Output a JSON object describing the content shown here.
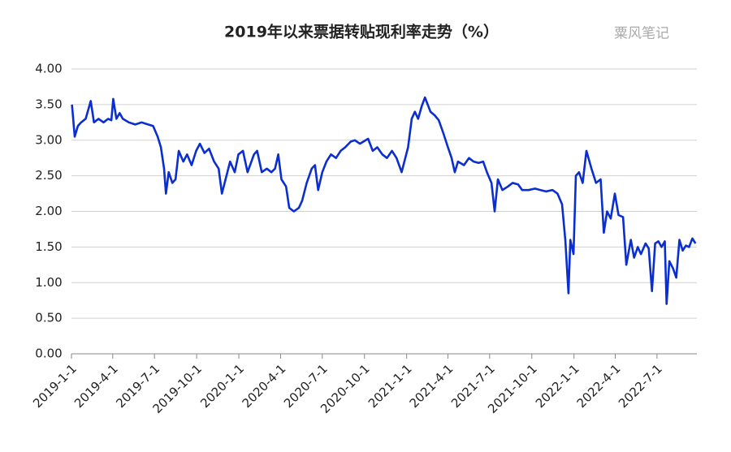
{
  "chart_data": {
    "type": "line",
    "title": "2019年以来票据转贴现利率走势（%）",
    "annotations": [
      "粟风笔记"
    ],
    "x": [
      "2019-1-2",
      "2019-1-8",
      "2019-1-15",
      "2019-1-22",
      "2019-2-1",
      "2019-2-12",
      "2019-2-19",
      "2019-3-1",
      "2019-3-12",
      "2019-3-22",
      "2019-3-29",
      "2019-4-2",
      "2019-4-9",
      "2019-4-16",
      "2019-4-23",
      "2019-5-6",
      "2019-5-20",
      "2019-6-3",
      "2019-6-17",
      "2019-6-28",
      "2019-7-8",
      "2019-7-15",
      "2019-7-22",
      "2019-7-26",
      "2019-8-1",
      "2019-8-9",
      "2019-8-16",
      "2019-8-23",
      "2019-9-2",
      "2019-9-10",
      "2019-9-20",
      "2019-9-30",
      "2019-10-8",
      "2019-10-18",
      "2019-10-28",
      "2019-11-8",
      "2019-11-18",
      "2019-11-25",
      "2019-12-3",
      "2019-12-13",
      "2019-12-23",
      "2019-12-31",
      "2020-1-10",
      "2020-1-20",
      "2020-2-3",
      "2020-2-10",
      "2020-2-20",
      "2020-3-2",
      "2020-3-12",
      "2020-3-20",
      "2020-3-27",
      "2020-4-3",
      "2020-4-13",
      "2020-4-20",
      "2020-4-30",
      "2020-5-11",
      "2020-5-18",
      "2020-5-28",
      "2020-6-8",
      "2020-6-15",
      "2020-6-22",
      "2020-7-1",
      "2020-7-10",
      "2020-7-20",
      "2020-7-31",
      "2020-8-10",
      "2020-8-20",
      "2020-9-1",
      "2020-9-10",
      "2020-9-21",
      "2020-10-9",
      "2020-10-19",
      "2020-10-29",
      "2020-11-9",
      "2020-11-19",
      "2020-11-30",
      "2020-12-10",
      "2020-12-21",
      "2021-1-4",
      "2021-1-12",
      "2021-1-19",
      "2021-1-26",
      "2021-2-3",
      "2021-2-10",
      "2021-2-22",
      "2021-3-3",
      "2021-3-12",
      "2021-3-22",
      "2021-4-1",
      "2021-4-9",
      "2021-4-16",
      "2021-4-23",
      "2021-5-6",
      "2021-5-17",
      "2021-5-27",
      "2021-6-7",
      "2021-6-17",
      "2021-6-25",
      "2021-7-5",
      "2021-7-12",
      "2021-7-19",
      "2021-7-29",
      "2021-8-10",
      "2021-8-20",
      "2021-9-1",
      "2021-9-10",
      "2021-9-24",
      "2021-10-8",
      "2021-10-20",
      "2021-11-1",
      "2021-11-15",
      "2021-11-26",
      "2021-12-6",
      "2021-12-13",
      "2021-12-20",
      "2021-12-24",
      "2021-12-31",
      "2022-1-5",
      "2022-1-12",
      "2022-1-20",
      "2022-1-28",
      "2022-2-8",
      "2022-2-18",
      "2022-2-28",
      "2022-3-7",
      "2022-3-14",
      "2022-3-22",
      "2022-3-31",
      "2022-4-8",
      "2022-4-18",
      "2022-4-25",
      "2022-5-5",
      "2022-5-12",
      "2022-5-20",
      "2022-5-27",
      "2022-6-6",
      "2022-6-13",
      "2022-6-20",
      "2022-6-27",
      "2022-7-4",
      "2022-7-11",
      "2022-7-18",
      "2022-7-22",
      "2022-7-28",
      "2022-8-5",
      "2022-8-12",
      "2022-8-19",
      "2022-8-26",
      "2022-9-2",
      "2022-9-9",
      "2022-9-16",
      "2022-9-23"
    ],
    "series": [
      {
        "name": "票据转贴现利率",
        "color": "#0a2ecf",
        "values": [
          3.5,
          3.05,
          3.2,
          3.25,
          3.3,
          3.55,
          3.25,
          3.3,
          3.25,
          3.3,
          3.28,
          3.58,
          3.3,
          3.38,
          3.3,
          3.25,
          3.22,
          3.25,
          3.22,
          3.2,
          3.05,
          2.9,
          2.6,
          2.25,
          2.55,
          2.4,
          2.45,
          2.85,
          2.7,
          2.8,
          2.65,
          2.85,
          2.95,
          2.82,
          2.88,
          2.7,
          2.6,
          2.25,
          2.45,
          2.7,
          2.55,
          2.8,
          2.85,
          2.55,
          2.8,
          2.85,
          2.55,
          2.6,
          2.55,
          2.6,
          2.8,
          2.45,
          2.35,
          2.05,
          2.0,
          2.05,
          2.15,
          2.4,
          2.6,
          2.65,
          2.3,
          2.55,
          2.7,
          2.8,
          2.75,
          2.85,
          2.9,
          2.98,
          3.0,
          2.95,
          3.02,
          2.85,
          2.9,
          2.8,
          2.75,
          2.85,
          2.75,
          2.55,
          2.9,
          3.3,
          3.4,
          3.3,
          3.48,
          3.6,
          3.4,
          3.35,
          3.28,
          3.1,
          2.9,
          2.75,
          2.55,
          2.7,
          2.65,
          2.75,
          2.7,
          2.68,
          2.7,
          2.55,
          2.4,
          2.0,
          2.45,
          2.3,
          2.35,
          2.4,
          2.38,
          2.3,
          2.3,
          2.32,
          2.3,
          2.28,
          2.3,
          2.25,
          2.1,
          1.6,
          0.85,
          1.6,
          1.4,
          2.5,
          2.55,
          2.4,
          2.85,
          2.6,
          2.4,
          2.45,
          1.7,
          2.0,
          1.9,
          2.25,
          1.95,
          1.92,
          1.25,
          1.6,
          1.35,
          1.5,
          1.4,
          1.55,
          1.48,
          0.88,
          1.55,
          1.58,
          1.5,
          1.58,
          0.7,
          1.3,
          1.2,
          1.07,
          1.6,
          1.45,
          1.52,
          1.5,
          1.62,
          1.55
        ]
      }
    ],
    "xlim": [
      "2019-1-1",
      "2022-9-26"
    ],
    "xticks": [
      "2019-1-1",
      "2019-4-1",
      "2019-7-1",
      "2019-10-1",
      "2020-1-1",
      "2020-4-1",
      "2020-7-1",
      "2020-10-1",
      "2021-1-1",
      "2021-4-1",
      "2021-7-1",
      "2021-10-1",
      "2022-1-1",
      "2022-4-1",
      "2022-7-1"
    ],
    "ylim": [
      0,
      4
    ],
    "yticks": [
      {
        "value": 0,
        "label": "0.00"
      },
      {
        "value": 0.5,
        "label": "0.50"
      },
      {
        "value": 1,
        "label": "1.00"
      },
      {
        "value": 1.5,
        "label": "1.50"
      },
      {
        "value": 2,
        "label": "2.00"
      },
      {
        "value": 2.5,
        "label": "2.50"
      },
      {
        "value": 3,
        "label": "3.00"
      },
      {
        "value": 3.5,
        "label": "3.50"
      },
      {
        "value": 4,
        "label": "4.00"
      }
    ],
    "grid": true
  }
}
